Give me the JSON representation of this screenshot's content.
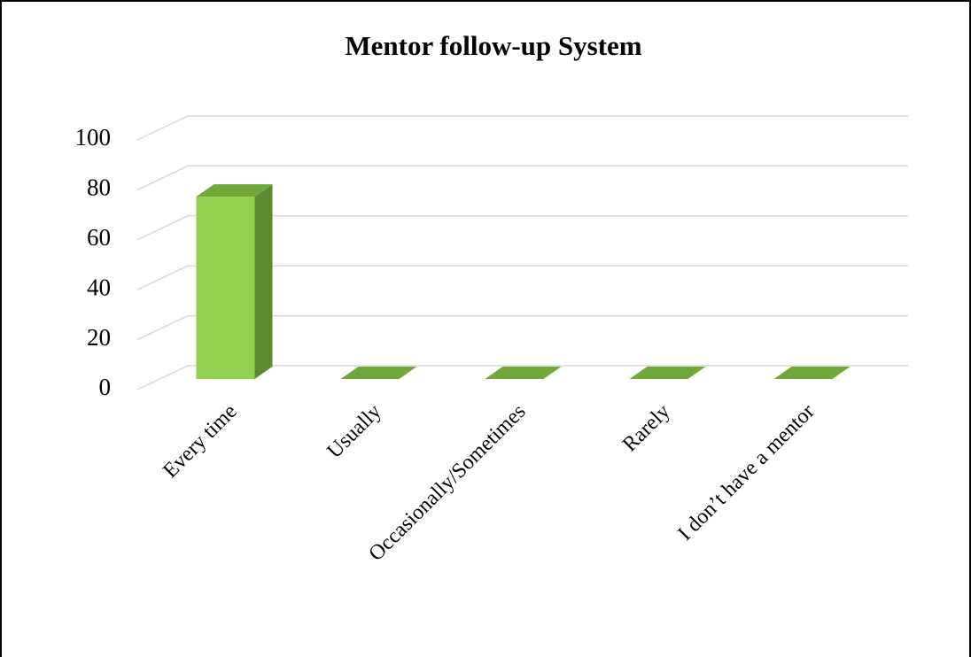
{
  "chart_data": {
    "type": "bar3d",
    "title": "Mentor follow-up System",
    "categories": [
      "Every time",
      "Usually",
      "Occasionally/Sometimes",
      "Rarely",
      "I don’t have a mentor"
    ],
    "values": [
      73,
      0,
      0,
      0,
      0
    ],
    "color": "#92d050",
    "ylim": [
      0,
      100
    ],
    "yticks": [
      0,
      20,
      40,
      60,
      80,
      100
    ],
    "grid": true
  }
}
